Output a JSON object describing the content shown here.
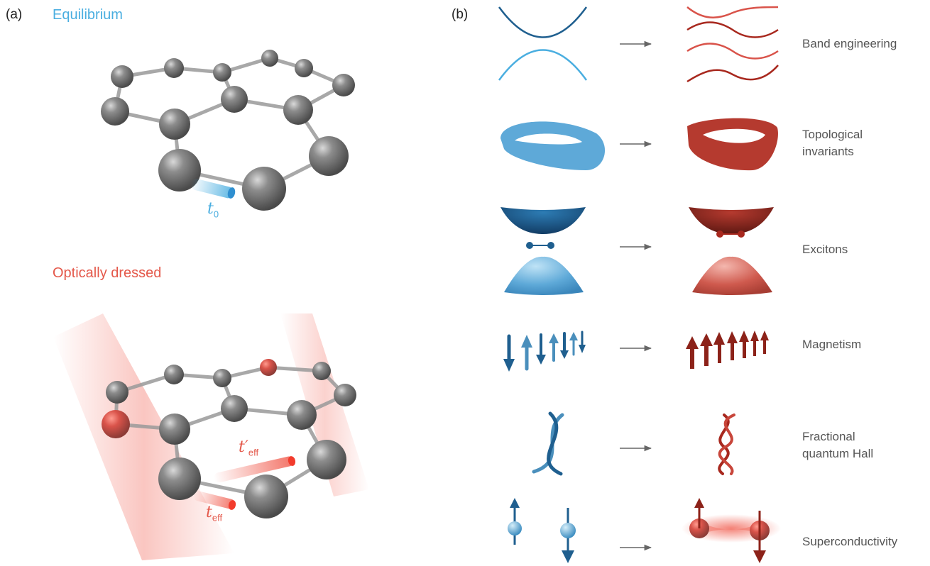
{
  "panel_a": {
    "label": "(a)",
    "equilibrium_title": "Equilibrium",
    "dressed_title": "Optically dressed",
    "hop_t0": {
      "base": "t",
      "sub": "0"
    },
    "hop_teff": {
      "base": "t",
      "sub": "eff"
    },
    "hop_teff_prime": {
      "base": "t′",
      "sub": "eff"
    },
    "colors": {
      "equilibrium": "#4aaee0",
      "dressed": "#e4584a"
    }
  },
  "panel_b": {
    "label": "(b)",
    "rows": [
      {
        "label": "Band engineering",
        "lines": [
          "Band engineering"
        ]
      },
      {
        "label": "Topological invariants",
        "lines": [
          "Topological",
          "invariants"
        ]
      },
      {
        "label": "Excitons",
        "lines": [
          "Excitons"
        ]
      },
      {
        "label": "Magnetism",
        "lines": [
          "Magnetism"
        ]
      },
      {
        "label": "Fractional quantum Hall",
        "lines": [
          "Fractional",
          "quantum Hall"
        ]
      },
      {
        "label": "Superconductivity",
        "lines": [
          "Superconductivity"
        ]
      }
    ],
    "colors": {
      "equilibrium": "#1f5f8f",
      "dressed": "#a8281e"
    }
  }
}
